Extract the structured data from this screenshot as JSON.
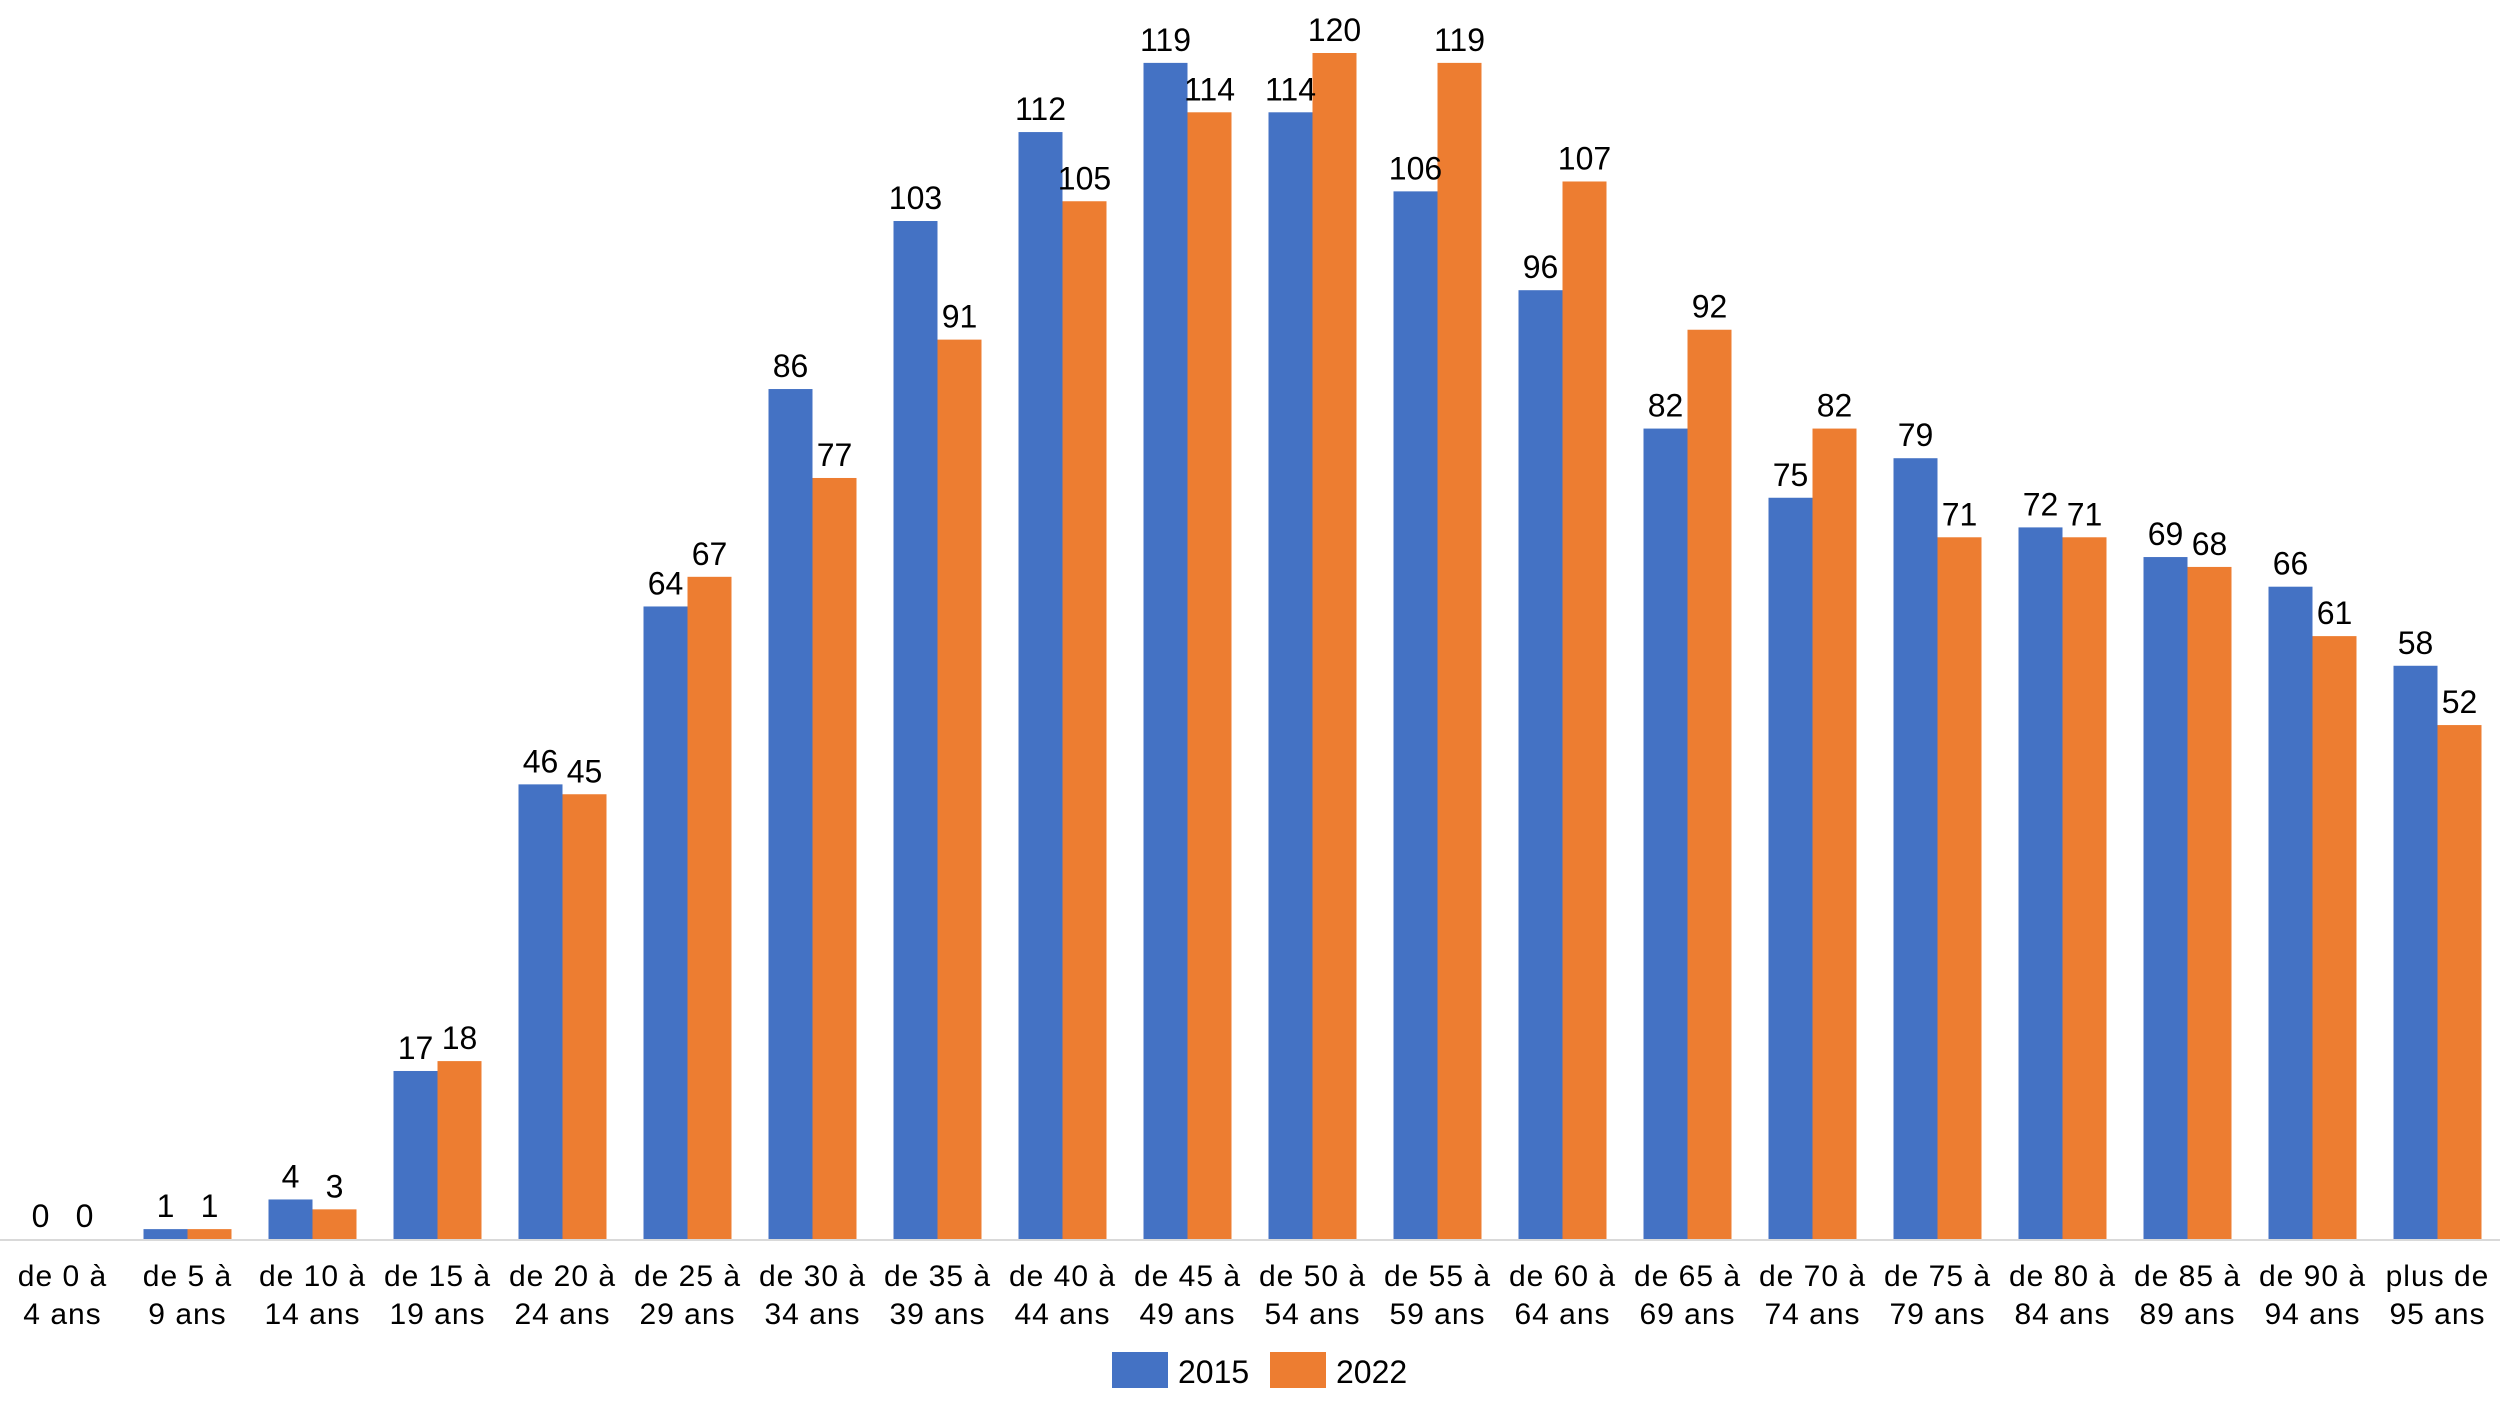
{
  "chart_data": {
    "type": "bar",
    "categories": [
      [
        "de 0 à",
        "4 ans"
      ],
      [
        "de 5 à",
        "9 ans"
      ],
      [
        "de 10 à",
        "14 ans"
      ],
      [
        "de 15 à",
        "19 ans"
      ],
      [
        "de 20 à",
        "24 ans"
      ],
      [
        "de 25 à",
        "29 ans"
      ],
      [
        "de 30 à",
        "34 ans"
      ],
      [
        "de 35 à",
        "39 ans"
      ],
      [
        "de 40 à",
        "44 ans"
      ],
      [
        "de 45 à",
        "49 ans"
      ],
      [
        "de 50 à",
        "54 ans"
      ],
      [
        "de 55 à",
        "59 ans"
      ],
      [
        "de 60 à",
        "64 ans"
      ],
      [
        "de 65 à",
        "69 ans"
      ],
      [
        "de 70 à",
        "74 ans"
      ],
      [
        "de 75 à",
        "79 ans"
      ],
      [
        "de 80 à",
        "84 ans"
      ],
      [
        "de 85 à",
        "89 ans"
      ],
      [
        "de 90 à",
        "94 ans"
      ],
      [
        "plus de",
        "95 ans"
      ]
    ],
    "series": [
      {
        "name": "2015",
        "color": "#4472C4",
        "values": [
          0,
          1,
          4,
          17,
          46,
          64,
          86,
          103,
          112,
          119,
          114,
          106,
          96,
          82,
          75,
          79,
          72,
          69,
          66,
          58
        ]
      },
      {
        "name": "2022",
        "color": "#ED7D31",
        "values": [
          0,
          1,
          3,
          18,
          45,
          67,
          77,
          91,
          105,
          114,
          120,
          119,
          107,
          92,
          82,
          71,
          71,
          68,
          61,
          52
        ]
      }
    ],
    "title": "",
    "xlabel": "",
    "ylabel": "",
    "ylim": [
      0,
      120
    ],
    "grid": false,
    "legend": "bottom-center",
    "data_labels": true
  }
}
